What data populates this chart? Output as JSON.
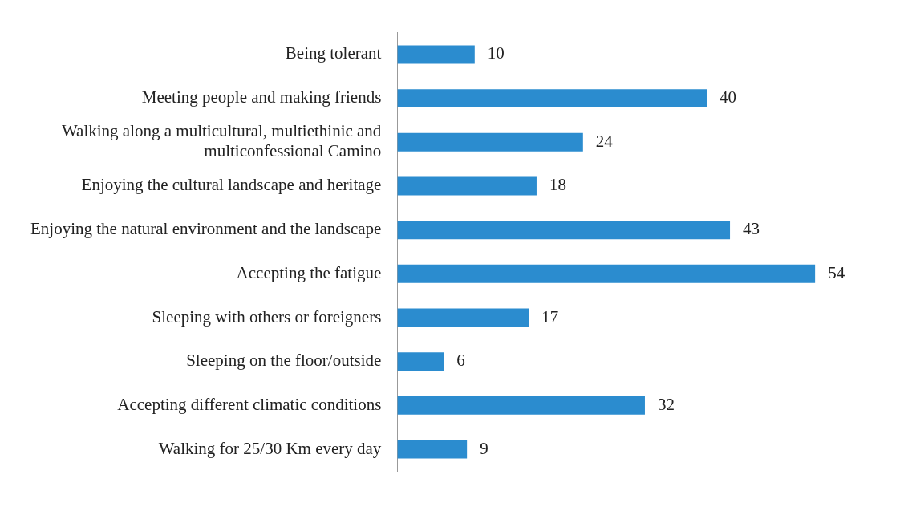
{
  "chart_data": {
    "type": "bar",
    "orientation": "horizontal",
    "categories": [
      "Being tolerant",
      "Meeting people and making friends",
      "Walking along a multicultural, multiethinic and multiconfessional Camino",
      "Enjoying the cultural landscape and heritage",
      "Enjoying the natural environment and the landscape",
      "Accepting the fatigue",
      "Sleeping with others or foreigners",
      "Sleeping on the floor/outside",
      "Accepting different climatic conditions",
      "Walking for 25/30 Km every day"
    ],
    "values": [
      10,
      40,
      24,
      18,
      43,
      54,
      17,
      6,
      32,
      9
    ],
    "color": "#2b8ccf",
    "data_labels": true
  }
}
